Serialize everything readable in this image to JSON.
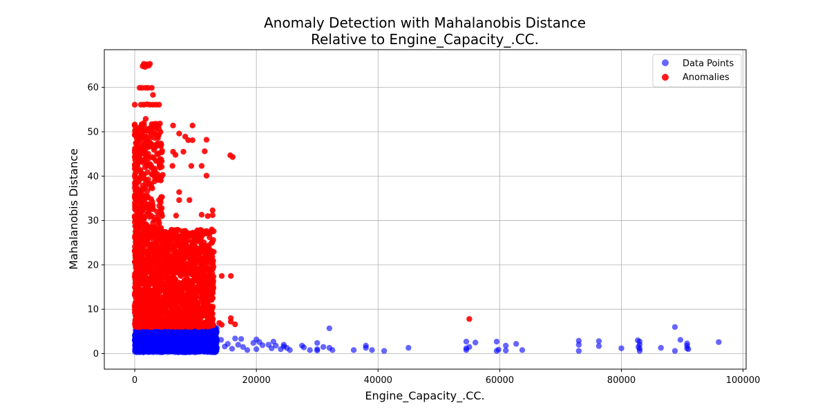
{
  "chart_data": {
    "type": "scatter",
    "title_line1": "Anomaly Detection with Mahalanobis Distance",
    "title_line2": "Relative to Engine_Capacity_.CC.",
    "xlabel": "Engine_Capacity_.CC.",
    "ylabel": "Mahalanobis Distance",
    "xlim": [
      -5000,
      100500
    ],
    "ylim": [
      -3.5,
      68.5
    ],
    "xticks": [
      0,
      20000,
      40000,
      60000,
      80000,
      100000
    ],
    "yticks": [
      0,
      10,
      20,
      30,
      40,
      50,
      60
    ],
    "grid": true,
    "legend_position": "top-right",
    "colors": {
      "data_points": "#0000ff",
      "anomalies": "#ff0000"
    },
    "series": [
      {
        "name": "Data Points",
        "color": "#0000ff",
        "opacity": 0.6,
        "points": [
          [
            13500,
            2.8
          ],
          [
            14200,
            3.1
          ],
          [
            14800,
            1.6
          ],
          [
            15300,
            2.2
          ],
          [
            16000,
            1.1
          ],
          [
            16500,
            3.4
          ],
          [
            17000,
            2.0
          ],
          [
            17500,
            3.3
          ],
          [
            17800,
            1.5
          ],
          [
            18500,
            0.8
          ],
          [
            19500,
            2.4
          ],
          [
            20000,
            3.2
          ],
          [
            20000,
            1.0
          ],
          [
            20500,
            2.6
          ],
          [
            21000,
            1.9
          ],
          [
            22000,
            2.0
          ],
          [
            22500,
            1.2
          ],
          [
            22800,
            2.7
          ],
          [
            23200,
            1.8
          ],
          [
            24000,
            1.0
          ],
          [
            24500,
            2.0
          ],
          [
            24500,
            1.6
          ],
          [
            25000,
            1.3
          ],
          [
            25500,
            0.8
          ],
          [
            27500,
            1.8
          ],
          [
            27800,
            1.4
          ],
          [
            28800,
            0.8
          ],
          [
            30000,
            2.4
          ],
          [
            30000,
            1.0
          ],
          [
            30000,
            0.7
          ],
          [
            31000,
            1.5
          ],
          [
            32000,
            5.7
          ],
          [
            32000,
            1.3
          ],
          [
            32500,
            0.8
          ],
          [
            36000,
            0.8
          ],
          [
            38000,
            1.8
          ],
          [
            38000,
            1.3
          ],
          [
            39000,
            0.8
          ],
          [
            41000,
            0.6
          ],
          [
            45000,
            1.3
          ],
          [
            54500,
            2.7
          ],
          [
            54500,
            1.2
          ],
          [
            54500,
            0.8
          ],
          [
            55000,
            1.5
          ],
          [
            56000,
            2.5
          ],
          [
            59500,
            2.7
          ],
          [
            59500,
            0.6
          ],
          [
            59800,
            0.9
          ],
          [
            61000,
            1.8
          ],
          [
            61000,
            0.7
          ],
          [
            62700,
            2.2
          ],
          [
            63700,
            0.8
          ],
          [
            73000,
            2.9
          ],
          [
            73000,
            2.0
          ],
          [
            73000,
            0.6
          ],
          [
            76300,
            2.8
          ],
          [
            76300,
            1.7
          ],
          [
            80000,
            1.2
          ],
          [
            82700,
            3.0
          ],
          [
            82800,
            1.5
          ],
          [
            83000,
            2.7
          ],
          [
            83000,
            2.0
          ],
          [
            83000,
            1.1
          ],
          [
            83000,
            0.6
          ],
          [
            86500,
            1.3
          ],
          [
            88800,
            6.0
          ],
          [
            88800,
            0.6
          ],
          [
            89700,
            3.1
          ],
          [
            90800,
            2.3
          ],
          [
            90800,
            1.8
          ],
          [
            90800,
            1.2
          ],
          [
            91000,
            1.0
          ],
          [
            96000,
            2.6
          ]
        ],
        "dense_band": {
          "x_range": [
            0,
            13500
          ],
          "y_range": [
            0.3,
            6.0
          ]
        }
      },
      {
        "name": "Anomalies",
        "color": "#ff0000",
        "opacity": 0.9,
        "points": [
          [
            1300,
            64.8
          ],
          [
            1500,
            65.3
          ],
          [
            1700,
            64.6
          ],
          [
            2000,
            65.2
          ],
          [
            2300,
            64.9
          ],
          [
            2500,
            65.3
          ],
          [
            800,
            59.9
          ],
          [
            1200,
            59.9
          ],
          [
            1800,
            59.9
          ],
          [
            2200,
            59.9
          ],
          [
            2800,
            59.9
          ],
          [
            3000,
            58.3
          ],
          [
            0,
            56.1
          ],
          [
            1000,
            56.1
          ],
          [
            1500,
            56.1
          ],
          [
            2000,
            56.2
          ],
          [
            2500,
            56.1
          ],
          [
            3000,
            56.1
          ],
          [
            3500,
            56.1
          ],
          [
            4000,
            56.1
          ],
          [
            1800,
            52.9
          ],
          [
            6300,
            51.4
          ],
          [
            9500,
            51.4
          ],
          [
            7300,
            49.6
          ],
          [
            8300,
            48.9
          ],
          [
            8800,
            48.1
          ],
          [
            9500,
            48.1
          ],
          [
            11800,
            48.2
          ],
          [
            4500,
            45.7
          ],
          [
            6300,
            45.5
          ],
          [
            6700,
            44.8
          ],
          [
            8000,
            45.5
          ],
          [
            11500,
            45.6
          ],
          [
            15700,
            44.7
          ],
          [
            16100,
            44.3
          ],
          [
            6200,
            42.3
          ],
          [
            9300,
            42.3
          ],
          [
            11000,
            42.3
          ],
          [
            4600,
            40.3
          ],
          [
            11800,
            40.1
          ],
          [
            1800,
            37.7
          ],
          [
            7300,
            36.4
          ],
          [
            2700,
            34.8
          ],
          [
            4000,
            34.6
          ],
          [
            7300,
            34.6
          ],
          [
            9000,
            34.6
          ],
          [
            12800,
            32.3
          ],
          [
            11000,
            31.3
          ],
          [
            12000,
            31.0
          ],
          [
            12800,
            31.2
          ],
          [
            6800,
            31.1
          ],
          [
            4500,
            31.0
          ],
          [
            0,
            31.0
          ],
          [
            6000,
            26.2
          ],
          [
            7300,
            26.4
          ],
          [
            8800,
            25.6
          ],
          [
            9700,
            26.2
          ],
          [
            12300,
            26.2
          ],
          [
            12900,
            25.6
          ],
          [
            11700,
            23.1
          ],
          [
            12700,
            23.0
          ],
          [
            9300,
            22.9
          ],
          [
            11800,
            20.9
          ],
          [
            12900,
            20.9
          ],
          [
            8500,
            18.8
          ],
          [
            11000,
            18.9
          ],
          [
            12000,
            19.1
          ],
          [
            14300,
            17.5
          ],
          [
            15800,
            17.5
          ],
          [
            13900,
            6.9
          ],
          [
            14300,
            6.5
          ],
          [
            15800,
            8.0
          ],
          [
            15800,
            7.2
          ],
          [
            16500,
            6.6
          ],
          [
            55000,
            7.8
          ]
        ],
        "dense_band": {
          "x_range": [
            0,
            13000
          ],
          "y_range": [
            6.0,
            28.0
          ]
        },
        "dense_column": {
          "x_range": [
            0,
            4500
          ],
          "y_range": [
            28.0,
            52.0
          ]
        }
      }
    ]
  }
}
